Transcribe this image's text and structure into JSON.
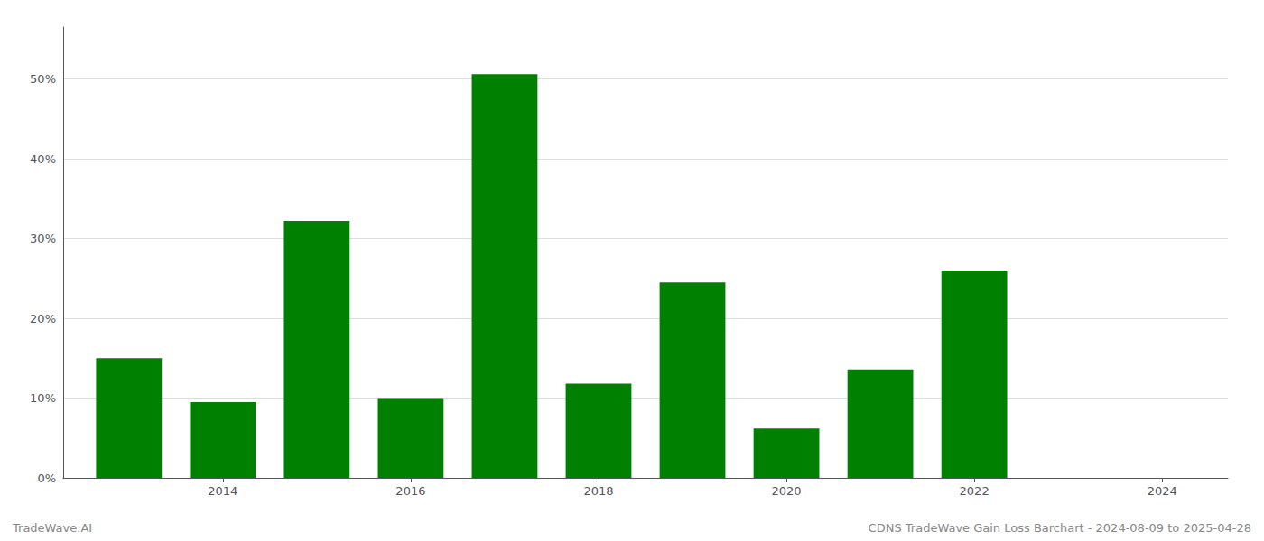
{
  "chart_data": {
    "type": "bar",
    "x": [
      2013,
      2014,
      2015,
      2016,
      2017,
      2018,
      2019,
      2020,
      2021,
      2022
    ],
    "values": [
      0.15,
      0.095,
      0.322,
      0.1,
      0.506,
      0.118,
      0.245,
      0.062,
      0.136,
      0.26
    ],
    "color": "#008000",
    "xlim": [
      2012.3,
      2024.7
    ],
    "xticks": [
      2014,
      2016,
      2018,
      2020,
      2022,
      2024
    ],
    "ylim": [
      0,
      0.565
    ],
    "yticks": [
      {
        "value": 0.0,
        "label": "0%"
      },
      {
        "value": 0.1,
        "label": "10%"
      },
      {
        "value": 0.2,
        "label": "20%"
      },
      {
        "value": 0.3,
        "label": "30%"
      },
      {
        "value": 0.4,
        "label": "40%"
      },
      {
        "value": 0.5,
        "label": "50%"
      }
    ],
    "grid": true,
    "annotations": [
      "TradeWave.AI",
      "CDNS TradeWave Gain Loss Barchart - 2024-08-09 to 2025-04-28"
    ]
  }
}
